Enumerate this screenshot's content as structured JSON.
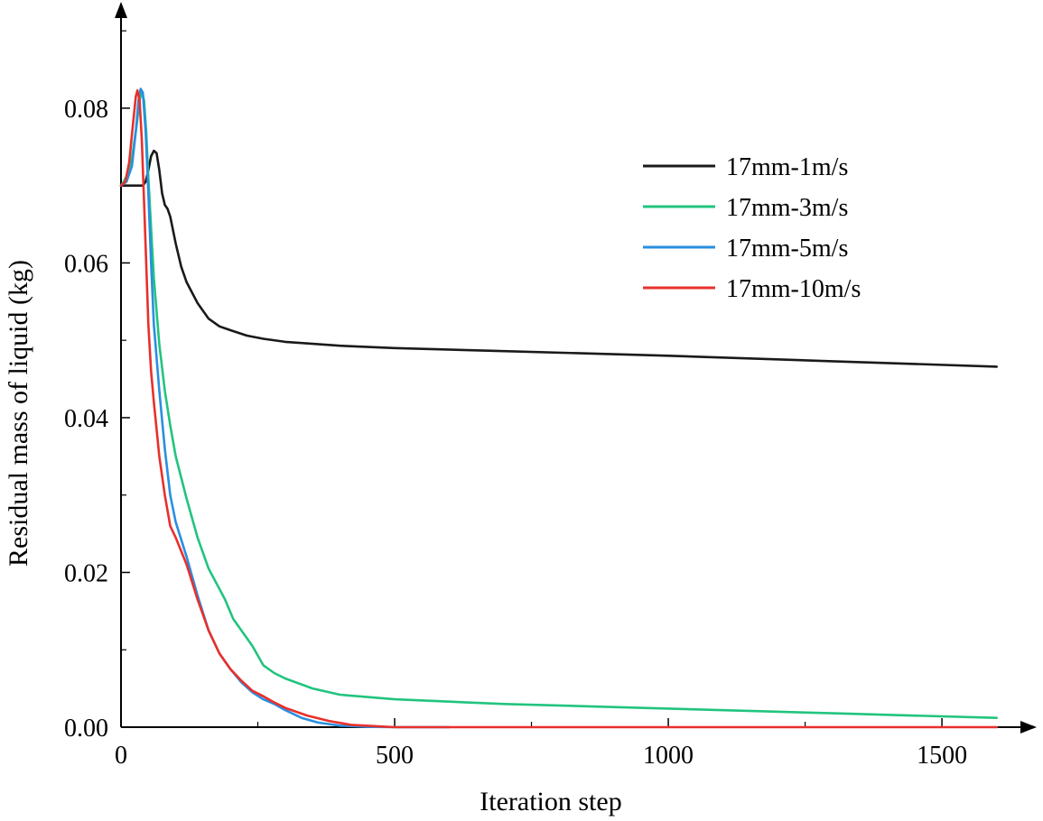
{
  "chart_data": {
    "type": "line",
    "title": "",
    "xlabel": "Iteration step",
    "ylabel": "Residual mass of liquid (kg)",
    "xlim": [
      0,
      1650
    ],
    "ylim": [
      0,
      0.092
    ],
    "xticks": [
      0,
      500,
      1000,
      1500
    ],
    "xtick_labels": [
      "0",
      "500",
      "1000",
      "1500"
    ],
    "xminor": [
      250,
      750,
      1250
    ],
    "yticks": [
      0,
      0.02,
      0.04,
      0.06,
      0.08
    ],
    "ytick_labels": [
      "0.00",
      "0.02",
      "0.04",
      "0.06",
      "0.08"
    ],
    "yminor": [
      0.01,
      0.03,
      0.05,
      0.07,
      0.09
    ],
    "legend_position": "top-right",
    "series": [
      {
        "name": "17mm-1m/s",
        "color": "#1a1a1a",
        "x": [
          0,
          10,
          20,
          30,
          40,
          45,
          50,
          55,
          60,
          65,
          70,
          75,
          80,
          85,
          90,
          100,
          110,
          120,
          140,
          160,
          180,
          200,
          230,
          260,
          300,
          400,
          500,
          700,
          1000,
          1300,
          1600
        ],
        "y": [
          0.07,
          0.07,
          0.07,
          0.07,
          0.07,
          0.0705,
          0.072,
          0.0738,
          0.0745,
          0.0742,
          0.072,
          0.069,
          0.0675,
          0.067,
          0.066,
          0.0625,
          0.0595,
          0.0575,
          0.0548,
          0.0528,
          0.0518,
          0.0513,
          0.0506,
          0.0502,
          0.0498,
          0.0493,
          0.049,
          0.0486,
          0.048,
          0.0473,
          0.0466
        ]
      },
      {
        "name": "17mm-3m/s",
        "color": "#22c47e",
        "x": [
          0,
          5,
          10,
          20,
          28,
          34,
          38,
          42,
          46,
          50,
          55,
          60,
          70,
          80,
          90,
          100,
          120,
          140,
          160,
          175,
          190,
          205,
          220,
          240,
          260,
          280,
          300,
          350,
          400,
          500,
          700,
          1000,
          1300,
          1600
        ],
        "y": [
          0.07,
          0.0705,
          0.0712,
          0.0735,
          0.0775,
          0.081,
          0.0822,
          0.081,
          0.077,
          0.071,
          0.0645,
          0.058,
          0.0495,
          0.0435,
          0.039,
          0.035,
          0.0295,
          0.0245,
          0.0205,
          0.0185,
          0.0165,
          0.014,
          0.0125,
          0.0105,
          0.008,
          0.007,
          0.0063,
          0.005,
          0.0042,
          0.0036,
          0.003,
          0.0024,
          0.0018,
          0.0012
        ]
      },
      {
        "name": "17mm-5m/s",
        "color": "#2a8fe0",
        "x": [
          0,
          10,
          20,
          27,
          32,
          36,
          40,
          45,
          50,
          55,
          60,
          70,
          80,
          90,
          100,
          120,
          140,
          160,
          180,
          200,
          220,
          240,
          260,
          280,
          300,
          330,
          360,
          400,
          450,
          500,
          600
        ],
        "y": [
          0.07,
          0.0705,
          0.0725,
          0.077,
          0.081,
          0.0825,
          0.082,
          0.077,
          0.069,
          0.06,
          0.052,
          0.0435,
          0.036,
          0.03,
          0.0265,
          0.022,
          0.017,
          0.0125,
          0.0095,
          0.0075,
          0.0058,
          0.0045,
          0.0036,
          0.003,
          0.0022,
          0.0012,
          0.0006,
          0.0002,
          5e-05,
          0,
          0
        ]
      },
      {
        "name": "17mm-10m/s",
        "color": "#e8302c",
        "x": [
          0,
          8,
          15,
          22,
          27,
          30,
          34,
          38,
          42,
          46,
          50,
          55,
          60,
          70,
          80,
          90,
          100,
          120,
          140,
          160,
          180,
          200,
          220,
          240,
          260,
          280,
          300,
          340,
          380,
          420,
          470,
          500,
          600,
          800,
          1000,
          1300,
          1600
        ],
        "y": [
          0.07,
          0.0705,
          0.073,
          0.078,
          0.0815,
          0.0823,
          0.081,
          0.076,
          0.068,
          0.06,
          0.052,
          0.046,
          0.042,
          0.035,
          0.03,
          0.026,
          0.0245,
          0.021,
          0.0165,
          0.0125,
          0.0095,
          0.0075,
          0.006,
          0.0047,
          0.004,
          0.0032,
          0.0025,
          0.0015,
          0.0008,
          0.0003,
          0.0001,
          0,
          0,
          0,
          0,
          0,
          0
        ]
      }
    ]
  }
}
